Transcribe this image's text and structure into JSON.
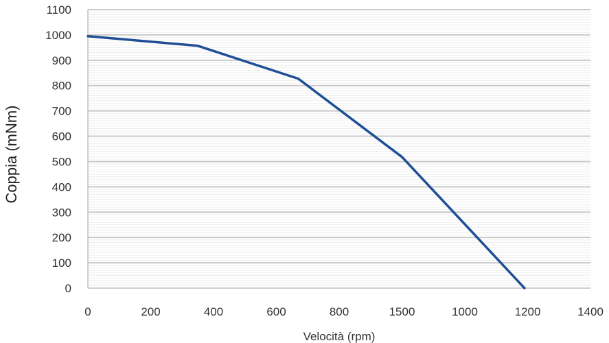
{
  "chart_data": {
    "type": "line",
    "title": "",
    "xlabel": "Velocità (rpm)",
    "ylabel": "Coppia (mNm)",
    "x_ticks": [
      "0",
      "200",
      "400",
      "600",
      "800",
      "1500",
      "1000",
      "1200",
      "1400"
    ],
    "y_ticks": [
      "0",
      "100",
      "200",
      "300",
      "400",
      "500",
      "600",
      "700",
      "800",
      "900",
      "1000",
      "1100"
    ],
    "ylim": [
      0,
      1100
    ],
    "grid": {
      "major_y": true,
      "minor_y": true,
      "x": false
    },
    "series": [
      {
        "x_index": [
          0,
          1.75,
          3.35,
          5.0,
          6.95
        ],
        "values": [
          995,
          957,
          827,
          518,
          0
        ]
      }
    ],
    "colors": {
      "line": "#1f4e96",
      "major_grid": "#c8c8c8",
      "minor_grid": "#ececec",
      "axis": "#bfbfbf"
    }
  }
}
